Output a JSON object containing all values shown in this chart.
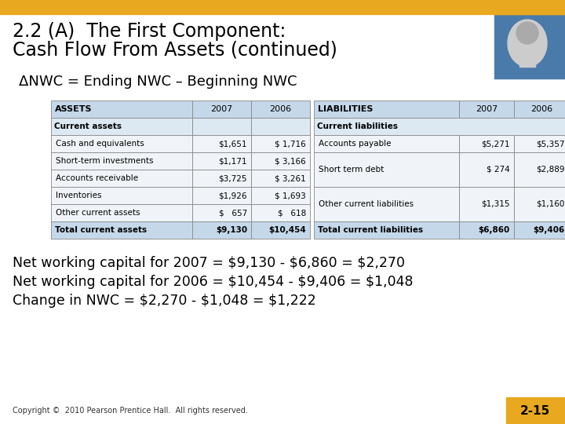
{
  "title_line1": "2.2 (A)  The First Component:",
  "title_line2": "Cash Flow From Assets (continued)",
  "delta_line": "ΔNWC = Ending NWC – Beginning NWC",
  "bg_color": "#ffffff",
  "header_bar_color": "#e8a820",
  "wrench_bg": "#4a7aaa",
  "slide_number": "2-15",
  "copyright": "Copyright ©  2010 Pearson Prentice Hall.  All rights reserved.",
  "table_header_bg": "#c5d8ea",
  "table_subheader_bg": "#dce9f3",
  "table_total_bg": "#c5d8ea",
  "table_row_bg": "#f0f4f8",
  "table_border": "#888888",
  "title_color": "#000000",
  "text_color": "#000000",
  "asset_rows": [
    [
      "Current assets",
      "",
      ""
    ],
    [
      "Cash and equivalents",
      "$1,651",
      "$ 1,716"
    ],
    [
      "Short-term investments",
      "$1,171",
      "$ 3,166"
    ],
    [
      "Accounts receivable",
      "$3,725",
      "$ 3,261"
    ],
    [
      "Inventories",
      "$1,926",
      "$ 1,693"
    ],
    [
      "Other current assets",
      "$   657",
      "$   618"
    ]
  ],
  "total_assets": [
    "Total current assets",
    "$9,130",
    "$10,454"
  ],
  "liability_rows": [
    [
      "Current liabilities",
      "",
      ""
    ],
    [
      "Accounts payable",
      "$5,271",
      "$5,357"
    ],
    [
      "Short term debt",
      "$ 274",
      "$2,889"
    ],
    [
      "Other current liabilities",
      "$1,315",
      "$1,160"
    ]
  ],
  "total_liabilities": [
    "Total current liabilities",
    "$6,860",
    "$9,406"
  ],
  "calcs": [
    "Net working capital for 2007 = $9,130 - $6,860 = $2,270",
    "Net working capital for 2006 = $10,454 - $9,406 = $1,048",
    "Change in NWC = $2,270 - $1,048 = $1,222"
  ]
}
